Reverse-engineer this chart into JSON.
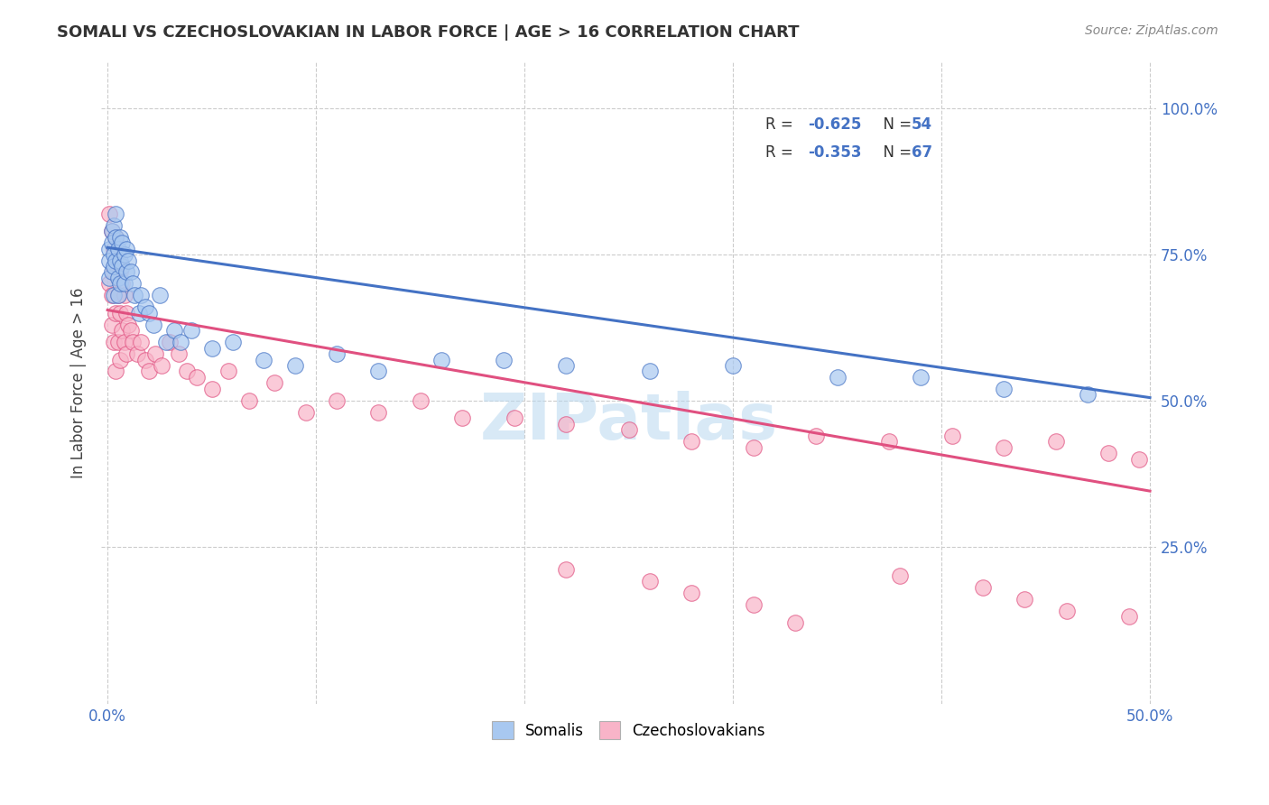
{
  "title": "SOMALI VS CZECHOSLOVAKIAN IN LABOR FORCE | AGE > 16 CORRELATION CHART",
  "source": "Source: ZipAtlas.com",
  "ylabel": "In Labor Force | Age > 16",
  "xlim": [
    -0.003,
    0.503
  ],
  "ylim": [
    -0.02,
    1.08
  ],
  "x_ticks": [
    0.0,
    0.1,
    0.2,
    0.3,
    0.4,
    0.5
  ],
  "x_tick_labels": [
    "0.0%",
    "",
    "",
    "",
    "",
    "50.0%"
  ],
  "y_ticks_right": [
    0.25,
    0.5,
    0.75,
    1.0
  ],
  "y_tick_labels_right": [
    "25.0%",
    "50.0%",
    "75.0%",
    "100.0%"
  ],
  "somali_R": -0.625,
  "somali_N": 54,
  "czech_R": -0.353,
  "czech_N": 67,
  "somali_color": "#a8c8f0",
  "czech_color": "#f8b4c8",
  "somali_line_color": "#4472c4",
  "czech_line_color": "#e05080",
  "watermark": "ZIPatlas",
  "background_color": "#ffffff",
  "somali_line_x0": 0.0,
  "somali_line_y0": 0.762,
  "somali_line_x1": 0.5,
  "somali_line_y1": 0.505,
  "czech_line_x0": 0.0,
  "czech_line_y0": 0.655,
  "czech_line_x1": 0.5,
  "czech_line_y1": 0.345,
  "somali_x": [
    0.001,
    0.001,
    0.001,
    0.002,
    0.002,
    0.002,
    0.003,
    0.003,
    0.003,
    0.003,
    0.004,
    0.004,
    0.004,
    0.005,
    0.005,
    0.005,
    0.006,
    0.006,
    0.006,
    0.007,
    0.007,
    0.008,
    0.008,
    0.009,
    0.009,
    0.01,
    0.011,
    0.012,
    0.013,
    0.015,
    0.016,
    0.018,
    0.02,
    0.022,
    0.025,
    0.028,
    0.032,
    0.035,
    0.04,
    0.05,
    0.06,
    0.075,
    0.09,
    0.11,
    0.13,
    0.16,
    0.19,
    0.22,
    0.26,
    0.3,
    0.35,
    0.39,
    0.43,
    0.47
  ],
  "somali_y": [
    0.76,
    0.74,
    0.71,
    0.79,
    0.77,
    0.72,
    0.8,
    0.75,
    0.73,
    0.68,
    0.82,
    0.78,
    0.74,
    0.76,
    0.71,
    0.68,
    0.78,
    0.74,
    0.7,
    0.77,
    0.73,
    0.75,
    0.7,
    0.76,
    0.72,
    0.74,
    0.72,
    0.7,
    0.68,
    0.65,
    0.68,
    0.66,
    0.65,
    0.63,
    0.68,
    0.6,
    0.62,
    0.6,
    0.62,
    0.59,
    0.6,
    0.57,
    0.56,
    0.58,
    0.55,
    0.57,
    0.57,
    0.56,
    0.55,
    0.56,
    0.54,
    0.54,
    0.52,
    0.51
  ],
  "czech_x": [
    0.001,
    0.001,
    0.002,
    0.002,
    0.002,
    0.003,
    0.003,
    0.003,
    0.004,
    0.004,
    0.004,
    0.005,
    0.005,
    0.005,
    0.006,
    0.006,
    0.006,
    0.007,
    0.007,
    0.008,
    0.008,
    0.009,
    0.009,
    0.01,
    0.011,
    0.012,
    0.014,
    0.016,
    0.018,
    0.02,
    0.023,
    0.026,
    0.03,
    0.034,
    0.038,
    0.043,
    0.05,
    0.058,
    0.068,
    0.08,
    0.095,
    0.11,
    0.13,
    0.15,
    0.17,
    0.195,
    0.22,
    0.25,
    0.28,
    0.31,
    0.34,
    0.375,
    0.405,
    0.43,
    0.455,
    0.48,
    0.495,
    0.22,
    0.26,
    0.28,
    0.31,
    0.33,
    0.38,
    0.42,
    0.44,
    0.46,
    0.49
  ],
  "czech_y": [
    0.82,
    0.7,
    0.79,
    0.68,
    0.63,
    0.76,
    0.72,
    0.6,
    0.78,
    0.65,
    0.55,
    0.74,
    0.68,
    0.6,
    0.72,
    0.65,
    0.57,
    0.7,
    0.62,
    0.68,
    0.6,
    0.65,
    0.58,
    0.63,
    0.62,
    0.6,
    0.58,
    0.6,
    0.57,
    0.55,
    0.58,
    0.56,
    0.6,
    0.58,
    0.55,
    0.54,
    0.52,
    0.55,
    0.5,
    0.53,
    0.48,
    0.5,
    0.48,
    0.5,
    0.47,
    0.47,
    0.46,
    0.45,
    0.43,
    0.42,
    0.44,
    0.43,
    0.44,
    0.42,
    0.43,
    0.41,
    0.4,
    0.21,
    0.19,
    0.17,
    0.15,
    0.12,
    0.2,
    0.18,
    0.16,
    0.14,
    0.13
  ]
}
